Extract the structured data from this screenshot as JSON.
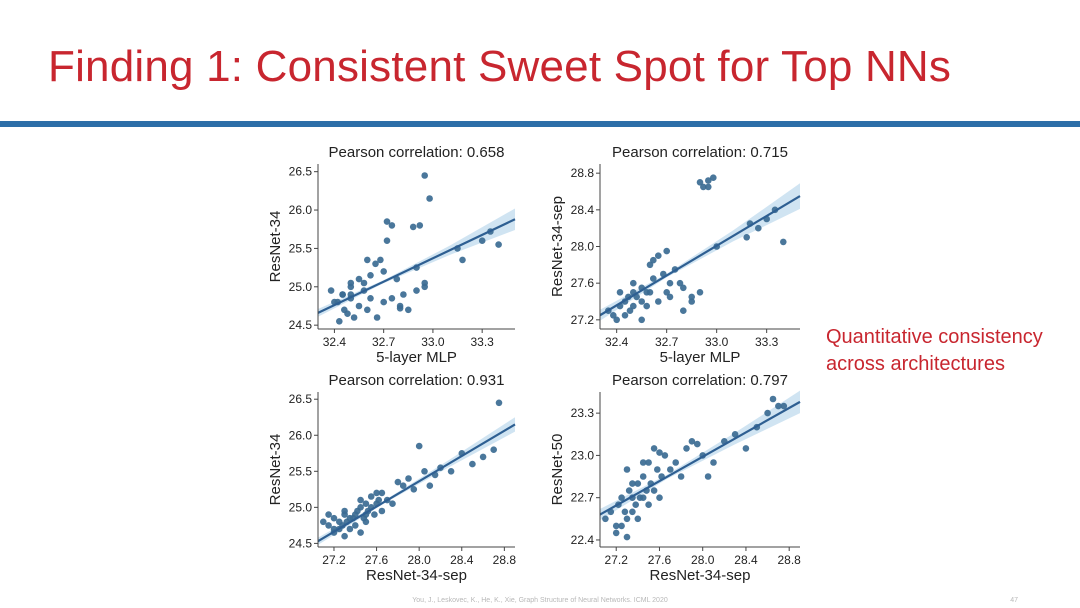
{
  "slide": {
    "title": "Finding 1: Consistent Sweet Spot for Top NNs",
    "side_note": "Quantitative consistency across architectures",
    "footer": "You, J., Leskovec, K., He, K., Xie, Graph Structure of Neural Networks. ICML 2020",
    "page_number": "47"
  },
  "colors": {
    "title": "#c8262f",
    "rule": "#2c6ea8",
    "point": "#3b6b93",
    "fit_line": "#2e5f92",
    "confidence_band": "#a9cde8"
  },
  "chart_data": [
    {
      "type": "scatter",
      "title": "Pearson correlation: 0.658",
      "xlabel": "5-layer MLP",
      "ylabel": "ResNet-34",
      "xlim": [
        32.3,
        33.5
      ],
      "ylim": [
        24.45,
        26.6
      ],
      "xticks": [
        "32.4",
        "32.7",
        "33.0",
        "33.3"
      ],
      "yticks": [
        "24.5",
        "25.0",
        "25.5",
        "26.0",
        "26.5"
      ],
      "grid": false,
      "fit": {
        "x": [
          32.3,
          33.5
        ],
        "y": [
          24.66,
          25.88
        ]
      },
      "band_halfwidth": [
        0.05,
        0.02,
        0.06,
        0.14
      ],
      "x": [
        32.45,
        32.5,
        32.38,
        32.42,
        32.55,
        32.6,
        32.48,
        32.52,
        32.4,
        32.45,
        32.5,
        32.58,
        32.62,
        32.7,
        32.75,
        32.8,
        32.85,
        32.9,
        32.5,
        32.55,
        32.62,
        32.68,
        32.72,
        32.78,
        32.82,
        32.95,
        32.6,
        32.65,
        32.7,
        32.72,
        32.75,
        32.88,
        32.92,
        32.9,
        32.95,
        32.98,
        33.15,
        33.18,
        33.3,
        33.35,
        33.4,
        32.95,
        32.46,
        32.5,
        32.43,
        32.58,
        32.66,
        32.8
      ],
      "y": [
        24.9,
        24.85,
        24.95,
        24.8,
        24.75,
        24.7,
        24.65,
        24.6,
        24.8,
        24.9,
        25.0,
        24.95,
        24.85,
        24.8,
        24.85,
        24.75,
        24.7,
        24.95,
        25.05,
        25.1,
        25.15,
        25.35,
        25.6,
        25.1,
        24.9,
        25.05,
        25.35,
        25.3,
        25.2,
        25.85,
        25.8,
        25.78,
        25.8,
        25.25,
        26.45,
        26.15,
        25.5,
        25.35,
        25.6,
        25.72,
        25.55,
        25.0,
        24.7,
        24.9,
        24.55,
        25.05,
        24.6,
        24.72
      ]
    },
    {
      "type": "scatter",
      "title": "Pearson correlation: 0.715",
      "xlabel": "5-layer MLP",
      "ylabel": "ResNet-34-sep",
      "xlim": [
        32.3,
        33.5
      ],
      "ylim": [
        27.1,
        28.9
      ],
      "xticks": [
        "32.4",
        "32.7",
        "33.0",
        "33.3"
      ],
      "yticks": [
        "27.2",
        "27.6",
        "28.0",
        "28.4",
        "28.8"
      ],
      "grid": false,
      "fit": {
        "x": [
          32.3,
          33.5
        ],
        "y": [
          27.25,
          28.55
        ]
      },
      "band_halfwidth": [
        0.06,
        0.02,
        0.06,
        0.14
      ],
      "x": [
        32.35,
        32.38,
        32.4,
        32.42,
        32.45,
        32.48,
        32.5,
        32.52,
        32.55,
        32.58,
        32.6,
        32.42,
        32.47,
        32.5,
        32.55,
        32.62,
        32.65,
        32.7,
        32.72,
        32.78,
        32.8,
        32.85,
        32.9,
        32.92,
        32.95,
        32.98,
        32.6,
        32.65,
        32.7,
        32.75,
        32.8,
        32.85,
        32.62,
        32.68,
        32.72,
        32.9,
        32.95,
        33.0,
        33.2,
        33.25,
        33.3,
        33.35,
        33.4,
        33.18,
        32.45,
        32.5,
        32.55,
        32.58
      ],
      "y": [
        27.3,
        27.25,
        27.2,
        27.35,
        27.4,
        27.3,
        27.5,
        27.45,
        27.55,
        27.35,
        27.5,
        27.5,
        27.45,
        27.6,
        27.4,
        27.65,
        27.4,
        27.5,
        27.45,
        27.6,
        27.3,
        27.4,
        27.5,
        28.65,
        28.65,
        28.75,
        27.8,
        27.9,
        27.95,
        27.75,
        27.55,
        27.45,
        27.85,
        27.7,
        27.6,
        28.7,
        28.72,
        28.0,
        28.25,
        28.2,
        28.3,
        28.4,
        28.05,
        28.1,
        27.25,
        27.35,
        27.2,
        27.5
      ]
    },
    {
      "type": "scatter",
      "title": "Pearson correlation: 0.931",
      "xlabel": "ResNet-34-sep",
      "ylabel": "ResNet-34",
      "xlim": [
        27.05,
        28.9
      ],
      "ylim": [
        24.45,
        26.6
      ],
      "xticks": [
        "27.2",
        "27.6",
        "28.0",
        "28.4",
        "28.8"
      ],
      "yticks": [
        "24.5",
        "25.0",
        "25.5",
        "26.0",
        "26.5"
      ],
      "grid": false,
      "fit": {
        "x": [
          27.05,
          28.9
        ],
        "y": [
          24.53,
          26.15
        ]
      },
      "band_halfwidth": [
        0.05,
        0.02,
        0.05,
        0.1
      ],
      "x": [
        27.1,
        27.15,
        27.2,
        27.2,
        27.25,
        27.28,
        27.3,
        27.32,
        27.35,
        27.38,
        27.4,
        27.42,
        27.45,
        27.48,
        27.5,
        27.5,
        27.52,
        27.55,
        27.58,
        27.6,
        27.62,
        27.65,
        27.2,
        27.25,
        27.3,
        27.35,
        27.4,
        27.45,
        27.5,
        27.55,
        27.6,
        27.7,
        27.75,
        27.8,
        27.9,
        28.0,
        28.05,
        28.1,
        28.15,
        28.2,
        28.3,
        28.4,
        28.5,
        28.6,
        28.7,
        28.75,
        27.15,
        27.3,
        27.45,
        27.65,
        27.85,
        27.95
      ],
      "y": [
        24.8,
        24.75,
        24.85,
        24.7,
        24.8,
        24.75,
        24.9,
        24.8,
        24.7,
        24.85,
        24.9,
        24.95,
        25.0,
        24.85,
        24.9,
        25.05,
        24.95,
        25.0,
        24.9,
        25.05,
        25.1,
        24.95,
        24.65,
        24.7,
        24.6,
        24.85,
        24.75,
        24.65,
        24.8,
        25.15,
        25.2,
        25.1,
        25.05,
        25.35,
        25.4,
        25.85,
        25.5,
        25.3,
        25.45,
        25.55,
        25.5,
        25.75,
        25.6,
        25.7,
        25.8,
        26.45,
        24.9,
        24.95,
        25.1,
        25.2,
        25.3,
        25.25
      ]
    },
    {
      "type": "scatter",
      "title": "Pearson correlation: 0.797",
      "xlabel": "ResNet-34-sep",
      "ylabel": "ResNet-50",
      "xlim": [
        27.05,
        28.9
      ],
      "ylim": [
        22.35,
        23.45
      ],
      "xticks": [
        "27.2",
        "27.6",
        "28.0",
        "28.4",
        "28.8"
      ],
      "yticks": [
        "22.4",
        "22.7",
        "23.0",
        "23.3"
      ],
      "grid": false,
      "fit": {
        "x": [
          27.05,
          28.9
        ],
        "y": [
          22.58,
          23.38
        ]
      },
      "band_halfwidth": [
        0.04,
        0.015,
        0.04,
        0.08
      ],
      "x": [
        27.1,
        27.15,
        27.2,
        27.22,
        27.25,
        27.28,
        27.3,
        27.32,
        27.35,
        27.38,
        27.4,
        27.42,
        27.45,
        27.48,
        27.5,
        27.52,
        27.55,
        27.58,
        27.6,
        27.62,
        27.2,
        27.25,
        27.3,
        27.35,
        27.4,
        27.45,
        27.5,
        27.55,
        27.65,
        27.7,
        27.75,
        27.8,
        27.85,
        27.9,
        27.95,
        28.0,
        28.05,
        28.1,
        28.2,
        28.3,
        28.4,
        28.5,
        28.6,
        28.65,
        28.7,
        28.75,
        27.3,
        27.45,
        27.6,
        27.35
      ],
      "y": [
        22.55,
        22.6,
        22.5,
        22.65,
        22.7,
        22.6,
        22.55,
        22.75,
        22.7,
        22.65,
        22.8,
        22.7,
        22.85,
        22.75,
        22.65,
        22.8,
        22.75,
        22.9,
        22.7,
        22.85,
        22.45,
        22.5,
        22.42,
        22.6,
        22.55,
        22.7,
        22.95,
        23.05,
        23.0,
        22.9,
        22.95,
        22.85,
        23.05,
        23.1,
        23.08,
        23.0,
        22.85,
        22.95,
        23.1,
        23.15,
        23.05,
        23.2,
        23.3,
        23.4,
        23.35,
        23.35,
        22.9,
        22.95,
        23.02,
        22.8
      ]
    }
  ]
}
